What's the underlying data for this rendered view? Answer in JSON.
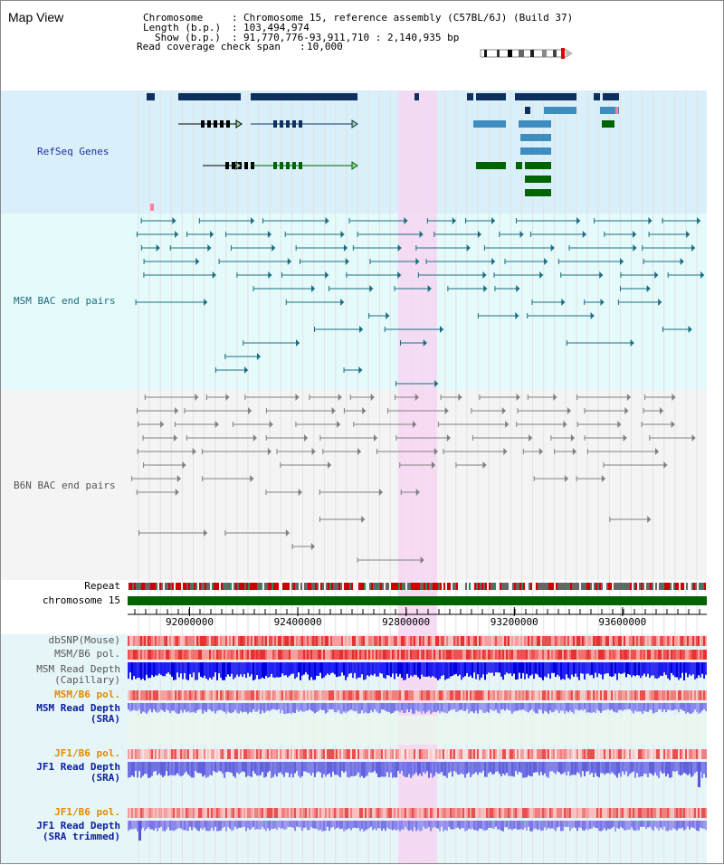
{
  "page": {
    "title": "Map View"
  },
  "header": {
    "chromosome_label": "Chromosome",
    "chromosome_value": "Chromosome 15, reference assembly (C57BL/6J) (Build 37)",
    "length_label": "Length (b.p.)",
    "length_value": "103,494,974",
    "show_label": "Show (b.p.)",
    "show_value": "91,770,776-93,911,710 : 2,140,935 bp",
    "coverage_label": "Read coverage check span",
    "coverage_value": "10,000"
  },
  "tracks": {
    "refseq": "RefSeq Genes",
    "msm_bac": "MSM BAC end pairs",
    "b6n_bac": "B6N BAC end pairs",
    "repeat": "Repeat",
    "chromosome": "chromosome 15",
    "dbsnp": "dbSNP(Mouse)",
    "msm_b6_pol": "MSM/B6 pol.",
    "msm_depth_cap_1": "MSM Read Depth",
    "msm_depth_cap_2": "(Capillary)",
    "msm_b6_pol_2": "MSM/B6 pol.",
    "msm_depth_sra_1": "MSM Read Depth",
    "msm_depth_sra_2": "(SRA)",
    "jf1_b6_pol": "JF1/B6 pol.",
    "jf1_depth_sra_1": "JF1 Read Depth",
    "jf1_depth_sra_2": "(SRA)",
    "jf1_b6_pol_2": "JF1/B6 pol.",
    "jf1_depth_tr_1": "JF1 Read Depth",
    "jf1_depth_tr_2": "(SRA trimmed)"
  },
  "axis": {
    "ticks": [
      "92000000",
      "92400000",
      "92800000",
      "93200000",
      "93600000"
    ],
    "tick_values": [
      92000000,
      92400000,
      92800000,
      93200000,
      93600000
    ],
    "start": 91770776,
    "end": 93911710
  },
  "highlight": {
    "start_bp": 92770000,
    "end_bp": 92915000
  },
  "colors": {
    "refseq_band": "#d9f0fa",
    "bac_band": "#e5fafa",
    "b6n_band": "#f4f4f4",
    "highlight": "#f6d6f2",
    "gene_dark": "#0f2f5e",
    "gene_mid": "#3f8dbf",
    "gene_green": "#006400",
    "msm_line": "#1a6e82",
    "b6n_line": "#808080",
    "chromosome_bar": "#006400",
    "label_blue": "#1d2fa8",
    "label_teal": "#1d6e80",
    "label_orange": "#e08a00",
    "label_dark_blue": "#0a1e9e",
    "label_gray": "#555555"
  }
}
